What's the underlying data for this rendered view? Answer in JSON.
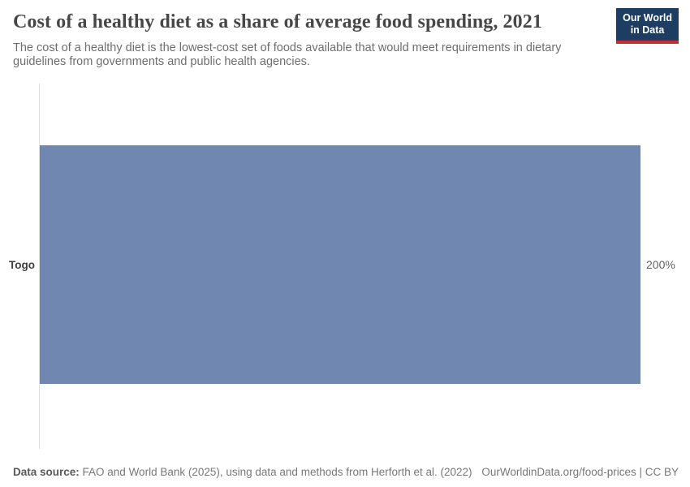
{
  "header": {
    "title": "Cost of a healthy diet as a share of average food spending, 2021",
    "subtitle": "The cost of a healthy diet is the lowest-cost set of foods available that would meet requirements in dietary guidelines from governments and public health agencies.",
    "logo": {
      "line1": "Our World",
      "line2": "in Data",
      "bg_color": "#1d3d63",
      "accent_color": "#c32e2e"
    }
  },
  "chart_data": {
    "type": "bar",
    "orientation": "horizontal",
    "title": "Cost of a healthy diet as a share of average food spending, 2021",
    "categories": [
      "Togo"
    ],
    "values": [
      200
    ],
    "value_labels": [
      "200%"
    ],
    "xlim": [
      0,
      200
    ],
    "xlabel": "",
    "ylabel": "",
    "grid": false,
    "legend": false,
    "bar_color": "#7087b1",
    "axis_color": "#dedede"
  },
  "footer": {
    "source_label": "Data source:",
    "source_text": " FAO and World Bank (2025), using data and methods from Herforth et al. (2022)",
    "link_text": "OurWorldinData.org/food-prices | CC BY"
  }
}
